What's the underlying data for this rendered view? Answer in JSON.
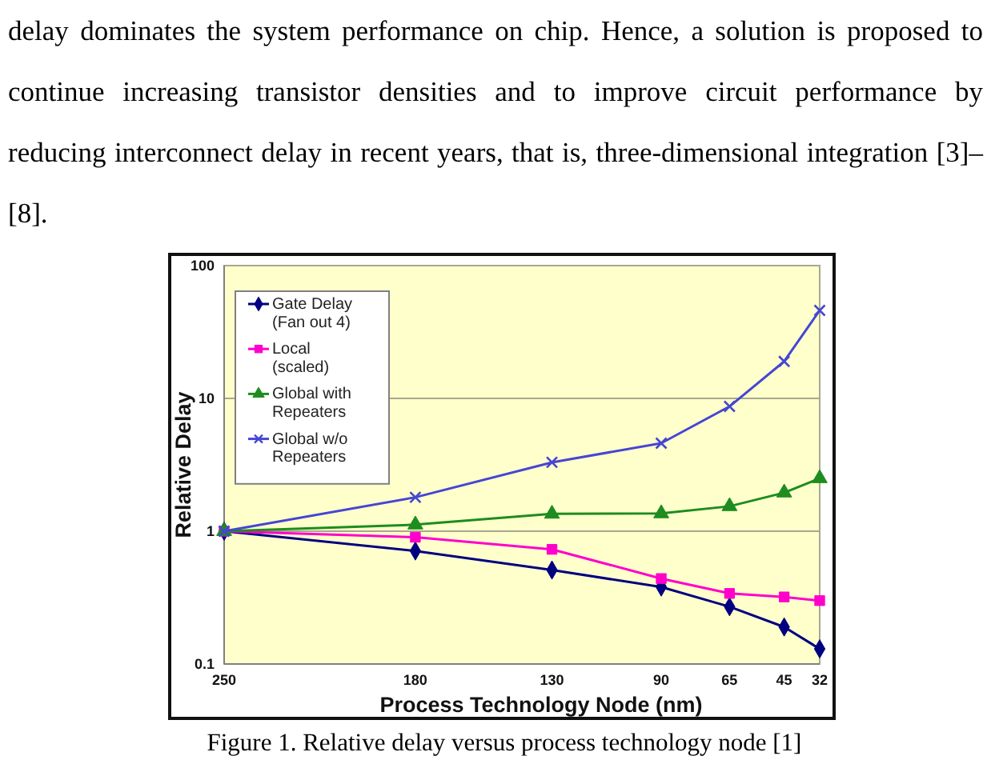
{
  "chart_data": {
    "type": "line",
    "xlabel": "Process Technology Node (nm)",
    "ylabel": "Relative Delay",
    "x": [
      250,
      180,
      130,
      90,
      65,
      45,
      32
    ],
    "xlim": [
      250,
      32
    ],
    "xticks": [
      250,
      180,
      130,
      90,
      65,
      45,
      32
    ],
    "ylim": [
      0.1,
      100
    ],
    "yticks": [
      0.1,
      1,
      10,
      100
    ],
    "log": true,
    "grid": "y",
    "legend": "top left",
    "series": [
      {
        "name": "Gate Delay (Fan out 4)",
        "color": "#000080",
        "marker": "diamond",
        "values": [
          1,
          0.71,
          0.51,
          0.38,
          0.27,
          0.19,
          0.13
        ]
      },
      {
        "name": "Local (scaled)",
        "color": "#ff00cc",
        "marker": "square",
        "values": [
          1,
          0.9,
          0.73,
          0.44,
          0.34,
          0.32,
          0.3
        ]
      },
      {
        "name": "Global with Repeaters",
        "color": "#1e8c1e",
        "marker": "triangle",
        "values": [
          1,
          1.12,
          1.35,
          1.36,
          1.54,
          1.95,
          2.5
        ]
      },
      {
        "name": "Global w/o Repeaters",
        "color": "#4646d2",
        "marker": "cross",
        "values": [
          1,
          1.8,
          3.3,
          4.6,
          8.7,
          19,
          46
        ]
      }
    ],
    "annotations": [
      "delay dominates the system performance on chip. Hence, a solution is proposed to continue increasing transistor densities and to improve circuit performance by reducing interconnect delay in recent years, that is, three-dimensional integration [3]–[8].",
      "Figure 1. Relative delay versus process technology node [1]"
    ]
  }
}
